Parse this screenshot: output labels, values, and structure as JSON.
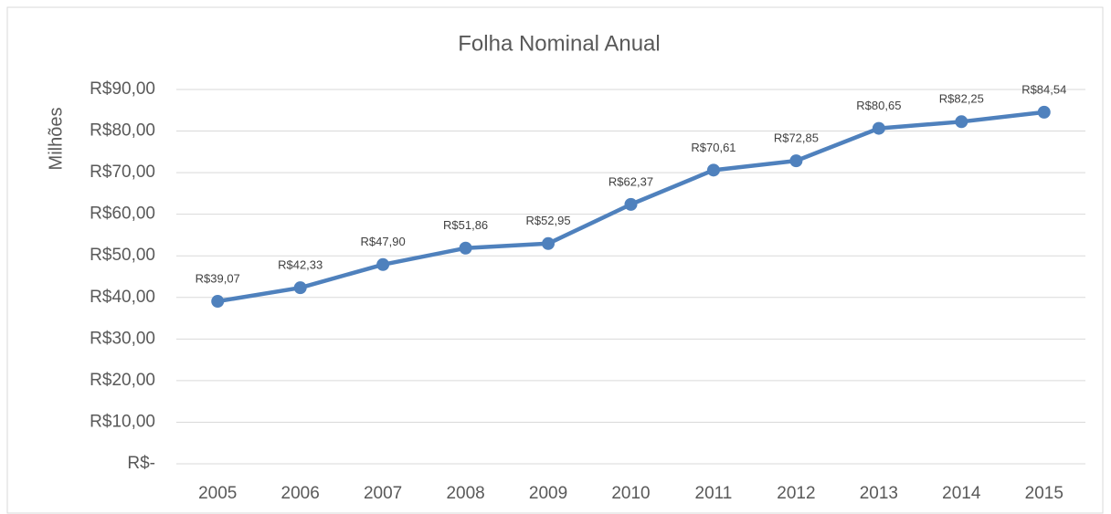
{
  "chart_data": {
    "type": "line",
    "title": "Folha Nominal Anual",
    "y_label": "Milhões",
    "categories": [
      "2005",
      "2006",
      "2007",
      "2008",
      "2009",
      "2010",
      "2011",
      "2012",
      "2013",
      "2014",
      "2015"
    ],
    "series": [
      {
        "name": "Folha Nominal Anual",
        "color": "#4f81bd",
        "values": [
          39.07,
          42.33,
          47.9,
          51.86,
          52.95,
          62.37,
          70.61,
          72.85,
          80.65,
          82.25,
          84.54
        ],
        "value_labels": [
          "R$39,07",
          "R$42,33",
          "R$47,90",
          "R$51,86",
          "R$52,95",
          "R$62,37",
          "R$70,61",
          "R$72,85",
          "R$80,65",
          "R$82,25",
          "R$84,54"
        ]
      }
    ],
    "ylim": [
      0,
      90
    ],
    "yticks": [
      {
        "value": 0,
        "label": "R$-"
      },
      {
        "value": 10,
        "label": "R$10,00"
      },
      {
        "value": 20,
        "label": "R$20,00"
      },
      {
        "value": 30,
        "label": "R$30,00"
      },
      {
        "value": 40,
        "label": "R$40,00"
      },
      {
        "value": 50,
        "label": "R$50,00"
      },
      {
        "value": 60,
        "label": "R$60,00"
      },
      {
        "value": 70,
        "label": "R$70,00"
      },
      {
        "value": 80,
        "label": "R$80,00"
      },
      {
        "value": 90,
        "label": "R$90,00"
      }
    ],
    "grid": true
  }
}
